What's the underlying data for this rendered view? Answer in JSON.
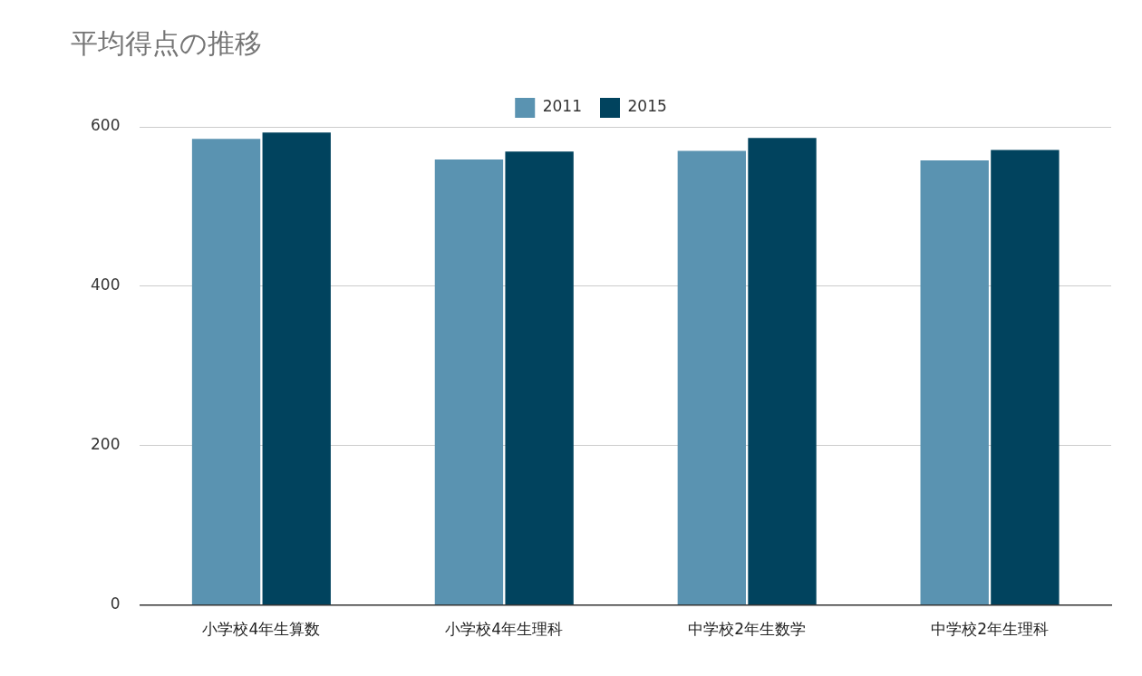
{
  "chart_data": {
    "type": "bar",
    "title": "平均得点の推移",
    "categories": [
      "小学校4年生算数",
      "小学校4年生理科",
      "中学校2年生数学",
      "中学校2年生理科"
    ],
    "series": [
      {
        "name": "2011",
        "color": "#5a93b1",
        "values": [
          585,
          559,
          570,
          558
        ]
      },
      {
        "name": "2015",
        "color": "#01435e",
        "values": [
          593,
          569,
          586,
          571
        ]
      }
    ],
    "ylim": [
      0,
      600
    ],
    "yticks": [
      0,
      200,
      400,
      600
    ],
    "grid": true,
    "legend": "top"
  }
}
